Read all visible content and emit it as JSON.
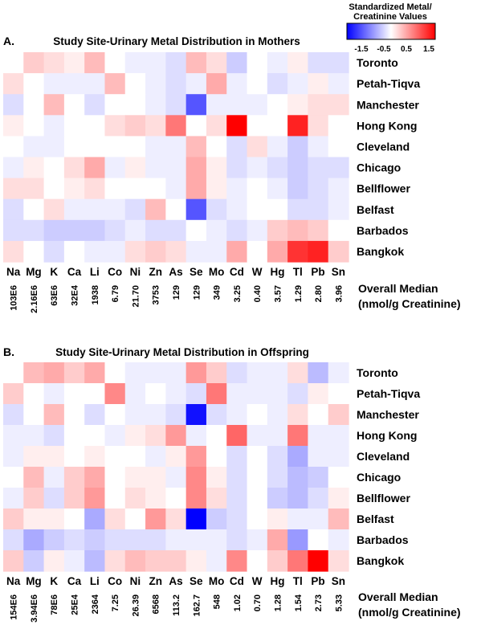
{
  "legend": {
    "title_line1": "Standardized Metal/",
    "title_line2": "Creatinine Values",
    "ticks": [
      "-1.5",
      "-0.5",
      "0.5",
      "1.5"
    ],
    "min": -1.5,
    "max": 1.5,
    "low_color": "#0000ff",
    "mid_color": "#ffffff",
    "high_color": "#ff0000"
  },
  "median_label_line1": "Overall Median",
  "median_label_line2": "(nmol/g Creatinine)",
  "chart_data": [
    {
      "type": "heatmap",
      "panel_label": "A.",
      "title": "Study Site-Urinary Metal Distribution in Mothers",
      "columns": [
        "Na",
        "Mg",
        "K",
        "Ca",
        "Li",
        "Co",
        "Ni",
        "Zn",
        "As",
        "Se",
        "Mo",
        "Cd",
        "W",
        "Hg",
        "Tl",
        "Pb",
        "Sn"
      ],
      "rows": [
        "Toronto",
        "Petah-Tiqva",
        "Manchester",
        "Hong Kong",
        "Cleveland",
        "Chicago",
        "Bellflower",
        "Belfast",
        "Barbados",
        "Bangkok"
      ],
      "medians": [
        "103E6",
        "2.16E6",
        "63E6",
        "32E4",
        "1938",
        "6.79",
        "21.70",
        "3753",
        "129",
        "129",
        "349",
        "3.25",
        "0.40",
        "3.57",
        "1.29",
        "2.80",
        "3.96"
      ],
      "values": [
        [
          0.0,
          0.3,
          0.2,
          0.1,
          0.4,
          0.0,
          -0.1,
          -0.1,
          -0.2,
          0.4,
          0.2,
          -0.3,
          0.0,
          -0.1,
          0.1,
          -0.2,
          -0.2
        ],
        [
          0.2,
          0.0,
          -0.1,
          -0.1,
          -0.1,
          0.4,
          0.0,
          -0.1,
          -0.2,
          -0.1,
          0.5,
          -0.1,
          0.0,
          -0.2,
          -0.1,
          0.1,
          -0.1
        ],
        [
          -0.2,
          0.0,
          0.4,
          0.0,
          -0.2,
          0.0,
          0.0,
          -0.1,
          -0.2,
          -1.0,
          -0.1,
          -0.1,
          -0.1,
          0.0,
          0.1,
          0.2,
          0.2
        ],
        [
          0.1,
          0.0,
          -0.1,
          0.0,
          0.0,
          0.2,
          0.3,
          0.2,
          0.8,
          0.0,
          0.2,
          1.5,
          0.0,
          0.0,
          1.3,
          0.2,
          0.0
        ],
        [
          0.0,
          -0.1,
          -0.1,
          0.0,
          0.0,
          0.0,
          0.0,
          -0.1,
          -0.1,
          0.4,
          0.0,
          -0.2,
          0.2,
          -0.1,
          -0.3,
          -0.1,
          0.0
        ],
        [
          -0.1,
          0.1,
          0.0,
          0.2,
          0.5,
          -0.1,
          0.1,
          -0.1,
          -0.1,
          0.5,
          0.1,
          -0.2,
          -0.1,
          -0.2,
          -0.3,
          -0.2,
          -0.2
        ],
        [
          0.2,
          0.2,
          0.0,
          0.1,
          0.2,
          0.0,
          0.0,
          0.0,
          -0.1,
          0.5,
          0.1,
          -0.1,
          0.0,
          -0.1,
          -0.3,
          -0.2,
          -0.1
        ],
        [
          -0.2,
          0.0,
          0.2,
          -0.1,
          -0.1,
          -0.1,
          -0.2,
          0.4,
          0.0,
          -1.0,
          -0.2,
          -0.1,
          0.0,
          0.0,
          -0.2,
          -0.2,
          -0.1
        ],
        [
          -0.2,
          -0.2,
          -0.3,
          -0.3,
          -0.3,
          -0.2,
          -0.1,
          -0.2,
          -0.2,
          0.0,
          -0.1,
          -0.2,
          -0.1,
          0.3,
          0.4,
          0.3,
          0.0
        ],
        [
          0.2,
          0.0,
          -0.2,
          0.0,
          -0.1,
          -0.1,
          0.2,
          0.3,
          0.2,
          -0.1,
          -0.1,
          0.5,
          0.0,
          0.5,
          1.2,
          1.3,
          0.3
        ]
      ]
    },
    {
      "type": "heatmap",
      "panel_label": "B.",
      "title": "Study Site-Urinary Metal Distribution in Offspring",
      "columns": [
        "Na",
        "Mg",
        "K",
        "Ca",
        "Li",
        "Co",
        "Ni",
        "Zn",
        "As",
        "Se",
        "Mo",
        "Cd",
        "W",
        "Hg",
        "Tl",
        "Pb",
        "Sn"
      ],
      "rows": [
        "Toronto",
        "Petah-Tiqva",
        "Manchester",
        "Hong Kong",
        "Cleveland",
        "Chicago",
        "Bellflower",
        "Belfast",
        "Barbados",
        "Bangkok"
      ],
      "medians": [
        "154E6",
        "3.94E6",
        "78E6",
        "25E4",
        "2364",
        "7.25",
        "26.39",
        "6568",
        "113.2",
        "162.7",
        "548",
        "1.02",
        "0.70",
        "1.28",
        "1.54",
        "2.73",
        "5.33"
      ],
      "values": [
        [
          0.0,
          0.4,
          0.5,
          0.3,
          0.5,
          0.0,
          -0.1,
          -0.1,
          -0.1,
          0.6,
          0.3,
          -0.2,
          -0.1,
          -0.1,
          0.2,
          -0.4,
          -0.1
        ],
        [
          0.3,
          0.0,
          -0.1,
          0.0,
          0.0,
          0.7,
          -0.1,
          0.0,
          -0.1,
          -0.2,
          0.8,
          -0.1,
          -0.1,
          -0.1,
          -0.2,
          0.1,
          0.0
        ],
        [
          -0.2,
          0.0,
          0.4,
          0.0,
          -0.2,
          0.0,
          -0.1,
          -0.1,
          -0.2,
          -1.4,
          -0.2,
          -0.1,
          0.0,
          -0.1,
          0.2,
          0.0,
          0.3
        ],
        [
          -0.1,
          -0.1,
          -0.2,
          0.0,
          0.0,
          -0.1,
          0.1,
          0.2,
          0.6,
          -0.1,
          0.0,
          0.9,
          -0.1,
          -0.1,
          0.8,
          -0.1,
          -0.1
        ],
        [
          -0.1,
          0.1,
          0.1,
          0.0,
          0.1,
          0.0,
          0.0,
          -0.1,
          0.1,
          0.6,
          0.0,
          -0.2,
          0.0,
          -0.2,
          -0.5,
          -0.1,
          -0.1
        ],
        [
          0.0,
          0.4,
          -0.1,
          0.3,
          0.5,
          0.0,
          0.1,
          0.1,
          -0.1,
          0.7,
          0.1,
          -0.2,
          0.0,
          -0.2,
          -0.4,
          -0.3,
          0.0
        ],
        [
          -0.1,
          0.3,
          -0.2,
          0.3,
          0.6,
          0.0,
          0.2,
          0.1,
          0.0,
          0.7,
          0.2,
          -0.2,
          0.0,
          -0.3,
          -0.4,
          -0.2,
          0.1
        ],
        [
          0.3,
          0.1,
          0.1,
          0.0,
          -0.5,
          0.2,
          0.0,
          0.6,
          0.2,
          -1.5,
          -0.3,
          -0.2,
          0.0,
          0.1,
          -0.1,
          -0.1,
          0.4
        ],
        [
          -0.2,
          -0.5,
          -0.3,
          -0.2,
          -0.3,
          -0.2,
          -0.2,
          -0.2,
          -0.1,
          -0.1,
          -0.1,
          -0.2,
          -0.1,
          0.5,
          -0.6,
          0.0,
          -0.1
        ],
        [
          0.3,
          -0.3,
          0.1,
          -0.1,
          -0.4,
          0.2,
          0.4,
          0.3,
          0.3,
          0.1,
          -0.1,
          0.7,
          0.0,
          0.3,
          0.8,
          1.5,
          0.2
        ]
      ]
    }
  ]
}
